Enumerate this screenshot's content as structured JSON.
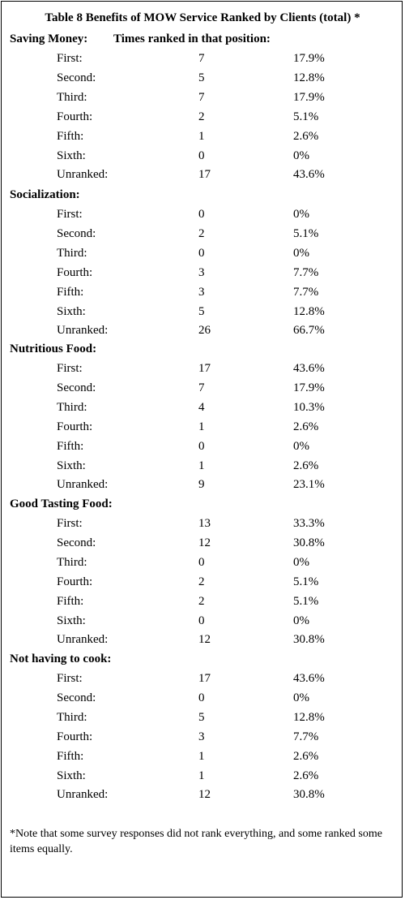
{
  "title": "Table 8 Benefits of MOW Service Ranked by Clients (total) *",
  "column_header": "Times ranked in that position:",
  "sections": [
    {
      "label": "Saving Money:",
      "rows": [
        {
          "position": "First:",
          "count": "7",
          "percent": "17.9%"
        },
        {
          "position": "Second:",
          "count": "5",
          "percent": "12.8%"
        },
        {
          "position": "Third:",
          "count": "7",
          "percent": "17.9%"
        },
        {
          "position": "Fourth:",
          "count": "2",
          "percent": "5.1%"
        },
        {
          "position": "Fifth:",
          "count": "1",
          "percent": "2.6%"
        },
        {
          "position": "Sixth:",
          "count": "0",
          "percent": "0%"
        },
        {
          "position": "Unranked:",
          "count": "17",
          "percent": "43.6%"
        }
      ]
    },
    {
      "label": "Socialization:",
      "rows": [
        {
          "position": "First:",
          "count": "0",
          "percent": "0%"
        },
        {
          "position": "Second:",
          "count": "2",
          "percent": "5.1%"
        },
        {
          "position": "Third:",
          "count": "0",
          "percent": "0%"
        },
        {
          "position": "Fourth:",
          "count": "3",
          "percent": "7.7%"
        },
        {
          "position": "Fifth:",
          "count": "3",
          "percent": "7.7%"
        },
        {
          "position": "Sixth:",
          "count": "5",
          "percent": "12.8%"
        },
        {
          "position": "Unranked:",
          "count": "26",
          "percent": "66.7%"
        }
      ]
    },
    {
      "label": "Nutritious Food:",
      "rows": [
        {
          "position": "First:",
          "count": "17",
          "percent": "43.6%"
        },
        {
          "position": "Second:",
          "count": "7",
          "percent": "17.9%"
        },
        {
          "position": "Third:",
          "count": "4",
          "percent": "10.3%"
        },
        {
          "position": "Fourth:",
          "count": "1",
          "percent": "2.6%"
        },
        {
          "position": "Fifth:",
          "count": "0",
          "percent": "0%"
        },
        {
          "position": "Sixth:",
          "count": "1",
          "percent": "2.6%"
        },
        {
          "position": "Unranked:",
          "count": "9",
          "percent": "23.1%"
        }
      ]
    },
    {
      "label": "Good Tasting Food:",
      "rows": [
        {
          "position": "First:",
          "count": "13",
          "percent": "33.3%"
        },
        {
          "position": "Second:",
          "count": "12",
          "percent": "30.8%"
        },
        {
          "position": "Third:",
          "count": "0",
          "percent": "0%"
        },
        {
          "position": "Fourth:",
          "count": "2",
          "percent": "5.1%"
        },
        {
          "position": "Fifth:",
          "count": "2",
          "percent": "5.1%"
        },
        {
          "position": "Sixth:",
          "count": "0",
          "percent": "0%"
        },
        {
          "position": "Unranked:",
          "count": "12",
          "percent": "30.8%"
        }
      ]
    },
    {
      "label": "Not having to cook:",
      "rows": [
        {
          "position": "First:",
          "count": "17",
          "percent": "43.6%"
        },
        {
          "position": "Second:",
          "count": "0",
          "percent": "0%"
        },
        {
          "position": "Third:",
          "count": "5",
          "percent": "12.8%"
        },
        {
          "position": "Fourth:",
          "count": "3",
          "percent": "7.7%"
        },
        {
          "position": "Fifth:",
          "count": "1",
          "percent": "2.6%"
        },
        {
          "position": "Sixth:",
          "count": "1",
          "percent": "2.6%"
        },
        {
          "position": "Unranked:",
          "count": "12",
          "percent": "30.8%"
        }
      ]
    }
  ],
  "note": "*Note that some survey responses did not rank everything, and some ranked some items equally."
}
